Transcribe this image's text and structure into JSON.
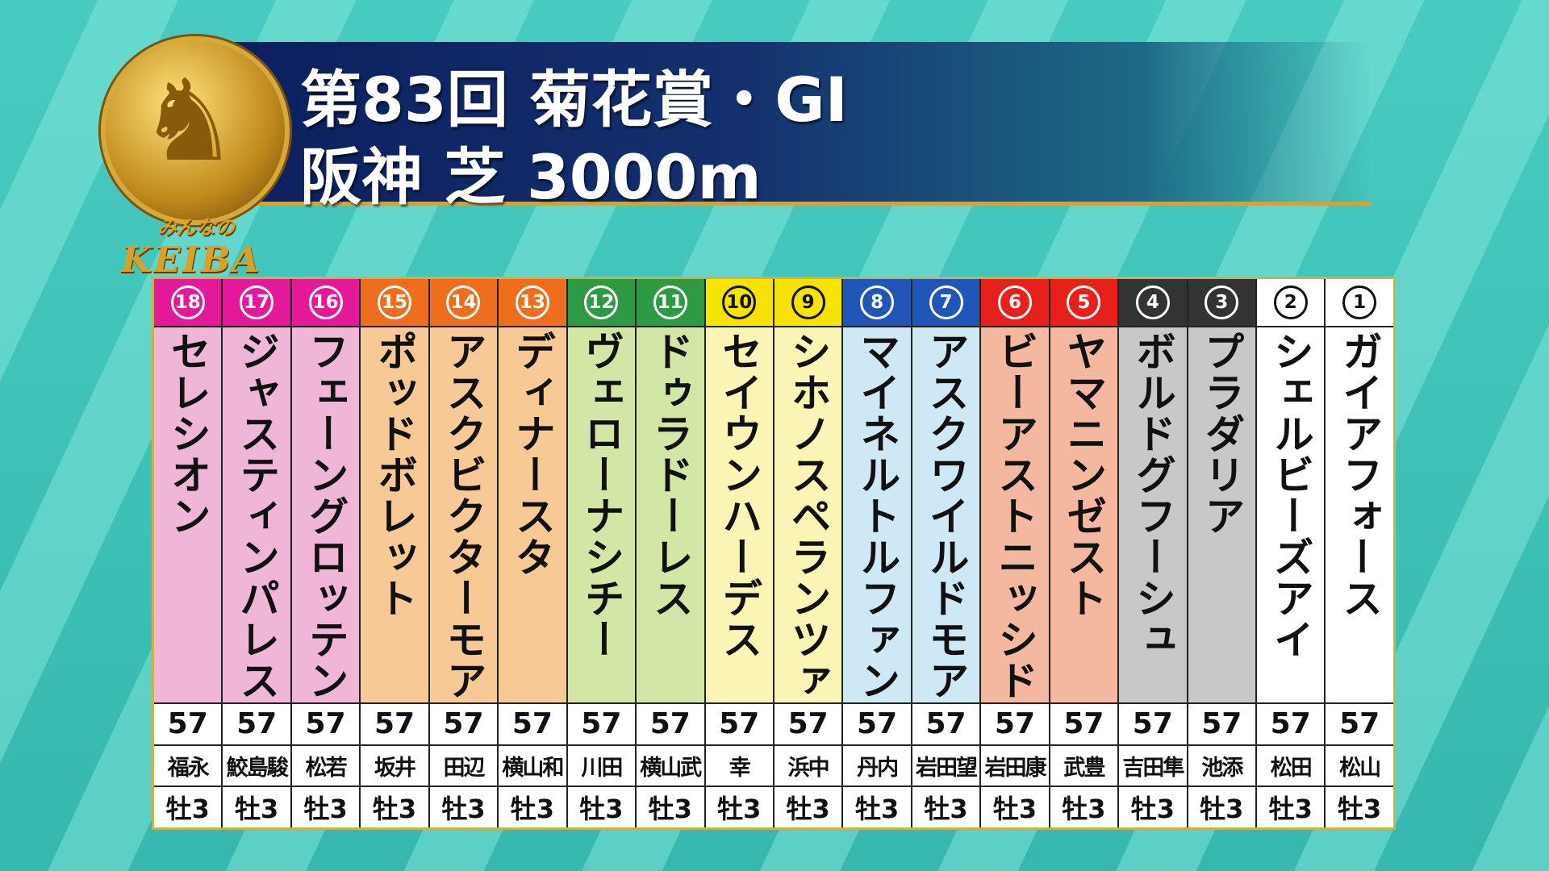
{
  "header": {
    "title_line1": "第83回 菊花賞・GI",
    "title_line2": "阪神 芝 3000m"
  },
  "logo": {
    "text_small": "みんなの",
    "text_big": "KEIBA"
  },
  "waku_colors": {
    "1": {
      "head": "#ffffff",
      "body": "#ffffff",
      "dark": true
    },
    "2": {
      "head": "#333333",
      "body": "#c8c8c8",
      "dark": false
    },
    "3": {
      "head": "#e8201c",
      "body": "#f4b8a0",
      "dark": false
    },
    "4": {
      "head": "#1f56b8",
      "body": "#cfe8f6",
      "dark": false
    },
    "5": {
      "head": "#f6e400",
      "body": "#faf5b4",
      "dark": true
    },
    "6": {
      "head": "#2f9a44",
      "body": "#d2e7a6",
      "dark": false
    },
    "7": {
      "head": "#ee6e1e",
      "body": "#f6c995",
      "dark": false
    },
    "8": {
      "head": "#e3199a",
      "body": "#efb6d8",
      "dark": false
    }
  },
  "horses": [
    {
      "num": "18",
      "waku": 8,
      "name": "セレシオン",
      "weight": "57",
      "jockey": "福永",
      "sex_age": "牡3"
    },
    {
      "num": "17",
      "waku": 8,
      "name": "ジャスティンパレス",
      "weight": "57",
      "jockey": "鮫島駿",
      "sex_age": "牡3"
    },
    {
      "num": "16",
      "waku": 8,
      "name": "フェーングロッテン",
      "weight": "57",
      "jockey": "松若",
      "sex_age": "牡3"
    },
    {
      "num": "15",
      "waku": 7,
      "name": "ポッドボレット",
      "weight": "57",
      "jockey": "坂井",
      "sex_age": "牡3"
    },
    {
      "num": "14",
      "waku": 7,
      "name": "アスクビクターモア",
      "weight": "57",
      "jockey": "田辺",
      "sex_age": "牡3"
    },
    {
      "num": "13",
      "waku": 7,
      "name": "ディナースタ",
      "weight": "57",
      "jockey": "横山和",
      "sex_age": "牡3"
    },
    {
      "num": "12",
      "waku": 6,
      "name": "ヴェローナシチー",
      "weight": "57",
      "jockey": "川田",
      "sex_age": "牡3"
    },
    {
      "num": "11",
      "waku": 6,
      "name": "ドゥラドーレス",
      "weight": "57",
      "jockey": "横山武",
      "sex_age": "牡3"
    },
    {
      "num": "10",
      "waku": 5,
      "name": "セイウンハーデス",
      "weight": "57",
      "jockey": "幸",
      "sex_age": "牡3"
    },
    {
      "num": "9",
      "waku": 5,
      "name": "シホノスペランツァ",
      "weight": "57",
      "jockey": "浜中",
      "sex_age": "牡3"
    },
    {
      "num": "8",
      "waku": 4,
      "name": "マイネルトルファン",
      "weight": "57",
      "jockey": "丹内",
      "sex_age": "牡3"
    },
    {
      "num": "7",
      "waku": 4,
      "name": "アスクワイルドモア",
      "weight": "57",
      "jockey": "岩田望",
      "sex_age": "牡3"
    },
    {
      "num": "6",
      "waku": 3,
      "name": "ビーアストニッシド",
      "weight": "57",
      "jockey": "岩田康",
      "sex_age": "牡3"
    },
    {
      "num": "5",
      "waku": 3,
      "name": "ヤマニンゼスト",
      "weight": "57",
      "jockey": "武豊",
      "sex_age": "牡3"
    },
    {
      "num": "4",
      "waku": 2,
      "name": "ボルドグフーシュ",
      "weight": "57",
      "jockey": "吉田隼",
      "sex_age": "牡3"
    },
    {
      "num": "3",
      "waku": 2,
      "name": "プラダリア",
      "weight": "57",
      "jockey": "池添",
      "sex_age": "牡3"
    },
    {
      "num": "2",
      "waku": 1,
      "name": "シェルビーズアイ",
      "weight": "57",
      "jockey": "松田",
      "sex_age": "牡3"
    },
    {
      "num": "1",
      "waku": 1,
      "name": "ガイアフォース",
      "weight": "57",
      "jockey": "松山",
      "sex_age": "牡3"
    }
  ]
}
